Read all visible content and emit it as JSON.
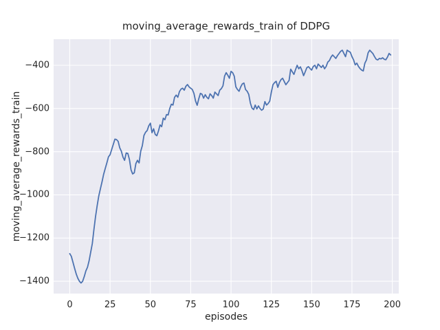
{
  "chart_data": {
    "type": "line",
    "title": "moving_average_rewards_train of DDPG",
    "xlabel": "episodes",
    "ylabel": "moving_average_rewards_train",
    "grid": true,
    "xlim": [
      -10,
      204
    ],
    "ylim": [
      -1457,
      -279
    ],
    "xticks": [
      0,
      25,
      50,
      75,
      100,
      125,
      150,
      175,
      200
    ],
    "xtick_labels": [
      "0",
      "25",
      "50",
      "75",
      "100",
      "125",
      "150",
      "175",
      "200"
    ],
    "yticks": [
      -400,
      -600,
      -800,
      -1000,
      -1200,
      -1400
    ],
    "ytick_labels": [
      "−400",
      "−600",
      "−800",
      "−1000",
      "−1200",
      "−1400"
    ],
    "colors": {
      "figure_bg": "#ffffff",
      "axes_bg": "#eaeaf2",
      "grid": "#ffffff",
      "line": "#4c72b0",
      "text": "#262626"
    },
    "series": [
      {
        "name": "moving_average_rewards_train",
        "x_start": 0,
        "x_step": 1,
        "values": [
          -1272,
          -1285,
          -1312,
          -1340,
          -1366,
          -1386,
          -1400,
          -1408,
          -1400,
          -1378,
          -1352,
          -1335,
          -1305,
          -1265,
          -1225,
          -1160,
          -1100,
          -1050,
          -1005,
          -972,
          -940,
          -905,
          -878,
          -852,
          -824,
          -814,
          -790,
          -766,
          -742,
          -744,
          -752,
          -782,
          -798,
          -825,
          -840,
          -806,
          -808,
          -836,
          -884,
          -903,
          -898,
          -855,
          -840,
          -852,
          -798,
          -772,
          -725,
          -710,
          -702,
          -680,
          -668,
          -712,
          -694,
          -720,
          -726,
          -704,
          -676,
          -684,
          -645,
          -652,
          -628,
          -630,
          -600,
          -580,
          -584,
          -548,
          -538,
          -548,
          -522,
          -510,
          -506,
          -515,
          -497,
          -489,
          -500,
          -506,
          -512,
          -530,
          -565,
          -585,
          -555,
          -530,
          -534,
          -552,
          -536,
          -548,
          -555,
          -532,
          -540,
          -552,
          -524,
          -532,
          -540,
          -515,
          -508,
          -495,
          -450,
          -434,
          -446,
          -460,
          -428,
          -434,
          -450,
          -500,
          -512,
          -520,
          -500,
          -486,
          -482,
          -512,
          -520,
          -535,
          -575,
          -598,
          -605,
          -584,
          -602,
          -588,
          -600,
          -608,
          -602,
          -568,
          -584,
          -577,
          -566,
          -524,
          -490,
          -480,
          -474,
          -502,
          -480,
          -466,
          -460,
          -475,
          -490,
          -480,
          -470,
          -418,
          -430,
          -442,
          -420,
          -400,
          -416,
          -407,
          -425,
          -448,
          -430,
          -411,
          -406,
          -415,
          -422,
          -405,
          -400,
          -416,
          -394,
          -402,
          -410,
          -400,
          -416,
          -405,
          -385,
          -378,
          -362,
          -352,
          -360,
          -368,
          -355,
          -345,
          -335,
          -330,
          -345,
          -360,
          -330,
          -335,
          -340,
          -360,
          -375,
          -398,
          -390,
          -405,
          -415,
          -422,
          -426,
          -390,
          -375,
          -342,
          -330,
          -338,
          -346,
          -360,
          -372,
          -375,
          -368,
          -370,
          -365,
          -372,
          -374,
          -362,
          -345,
          -352
        ]
      }
    ]
  }
}
